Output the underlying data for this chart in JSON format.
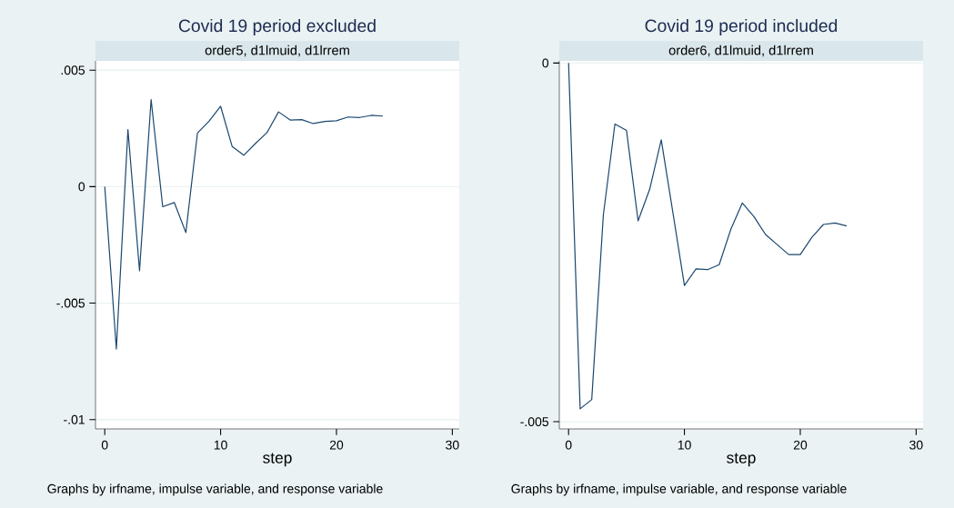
{
  "chart_data": [
    {
      "type": "line",
      "title": "Covid 19 period excluded",
      "subtitle": "order5, d1lmuid, d1lrrem",
      "xlabel": "step",
      "annotations": [
        "Graphs by irfname, impulse variable, and response variable"
      ],
      "x": [
        0,
        1,
        2,
        3,
        4,
        5,
        6,
        7,
        8,
        9,
        10,
        11,
        12,
        13,
        14,
        15,
        16,
        17,
        18,
        19,
        20,
        21,
        22,
        23,
        24
      ],
      "values": [
        0,
        -0.00697,
        0.00245,
        -0.00361,
        0.00374,
        -0.00086,
        -0.00068,
        -0.00197,
        0.0023,
        0.00281,
        0.00345,
        0.00172,
        0.00135,
        0.00185,
        0.00232,
        0.00321,
        0.00286,
        0.00288,
        0.00271,
        0.0028,
        0.00283,
        0.00299,
        0.00297,
        0.00306,
        0.00303
      ],
      "color": "#1a476f",
      "xlim": [
        -0.8,
        30.6
      ],
      "ylim": [
        -0.0104,
        0.0054
      ],
      "xticks": [
        0,
        10,
        20,
        30
      ],
      "yticks": [
        {
          "value": 0.005,
          "label": ".005"
        },
        0,
        {
          "value": -0.005,
          "label": "-.005"
        },
        {
          "value": -0.01,
          "label": "-.01"
        }
      ],
      "grid": "y"
    },
    {
      "type": "line",
      "title": "Covid 19 period included",
      "subtitle": "order6, d1lmuid, d1lrrem",
      "xlabel": "step",
      "annotations": [
        "Graphs by irfname, impulse variable, and response variable"
      ],
      "x": [
        0,
        1,
        2,
        3,
        4,
        5,
        6,
        7,
        8,
        9,
        10,
        11,
        12,
        13,
        14,
        15,
        16,
        17,
        18,
        19,
        20,
        21,
        22,
        23,
        24
      ],
      "values": [
        0,
        -0.00482,
        -0.00469,
        -0.00212,
        -0.00085,
        -0.00094,
        -0.0022,
        -0.00176,
        -0.00107,
        -0.00208,
        -0.0031,
        -0.00287,
        -0.00288,
        -0.00281,
        -0.00232,
        -0.00195,
        -0.00214,
        -0.00239,
        -0.00253,
        -0.00267,
        -0.00267,
        -0.00243,
        -0.00225,
        -0.00223,
        -0.00227
      ],
      "color": "#1a476f",
      "xlim": [
        -0.8,
        30.6
      ],
      "ylim": [
        -0.0051,
        3e-05
      ],
      "xticks": [
        0,
        10,
        20,
        30
      ],
      "yticks": [
        0,
        {
          "value": -0.005,
          "label": "-.005"
        }
      ],
      "grid": "y"
    }
  ]
}
